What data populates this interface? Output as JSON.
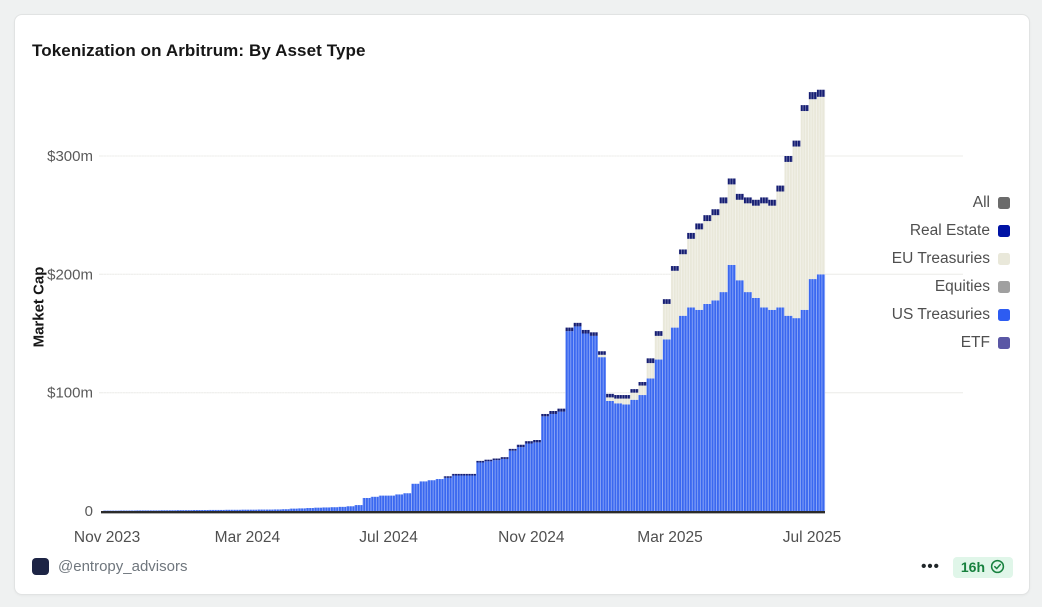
{
  "card": {
    "title": "Tokenization on Arbitrum: By Asset Type"
  },
  "legend": {
    "position": "right",
    "items": [
      {
        "label": "All",
        "color": "#6b6b6b"
      },
      {
        "label": "Real Estate",
        "color": "#0013a5"
      },
      {
        "label": "EU Treasuries",
        "color": "#e9e8da"
      },
      {
        "label": "Equities",
        "color": "#a0a0a0"
      },
      {
        "label": "US Treasuries",
        "color": "#2d5cf2"
      },
      {
        "label": "ETF",
        "color": "#5a57a5"
      }
    ]
  },
  "footer": {
    "handle": "@entropy_advisors",
    "overflow_label": "•••",
    "badge": {
      "age": "16h",
      "icon": "check-circle",
      "text_color": "#17813e",
      "bg_color": "#e0f6e9"
    }
  },
  "chart_data": {
    "type": "bar",
    "stacked": true,
    "title": "Tokenization on Arbitrum: By Asset Type",
    "xlabel": "",
    "ylabel": "Market Cap",
    "x_unit": "week (Nov 2023 → Jul 2025)",
    "ylim": [
      0,
      360
    ],
    "grid": true,
    "legend_position": "right",
    "y_ticks": [
      {
        "label": "$300m",
        "value": 300
      },
      {
        "label": "$200m",
        "value": 200
      },
      {
        "label": "$100m",
        "value": 100
      },
      {
        "label": "0",
        "value": 0
      }
    ],
    "x_ticks": [
      {
        "label": "Nov 2023",
        "week": 0
      },
      {
        "label": "Mar 2024",
        "week": 17.3
      },
      {
        "label": "Jul 2024",
        "week": 34.7
      },
      {
        "label": "Nov 2024",
        "week": 52.3
      },
      {
        "label": "Mar 2025",
        "week": 69.4
      },
      {
        "label": "Jul 2025",
        "week": 86.9
      }
    ],
    "series": [
      {
        "name": "US Treasuries",
        "color": "#3a68f0",
        "values": [
          0.3,
          0.3,
          0.4,
          0.4,
          0.5,
          0.5,
          0.5,
          0.6,
          0.6,
          0.7,
          0.7,
          0.8,
          0.8,
          0.9,
          0.9,
          1,
          1,
          1.1,
          1.1,
          1.2,
          1.2,
          1.3,
          1.5,
          2,
          2.2,
          2.5,
          2.8,
          3,
          3.2,
          3.5,
          4,
          5,
          11,
          12,
          13,
          13,
          14,
          15,
          23,
          25,
          26,
          27,
          28,
          30,
          30,
          30,
          41,
          42,
          43,
          44,
          51,
          54,
          57,
          58,
          80,
          82,
          84,
          152,
          156,
          150,
          148,
          130,
          93,
          91,
          90,
          94,
          98,
          112,
          128,
          145,
          155,
          165,
          172,
          170,
          175,
          178,
          185,
          208,
          195,
          185,
          180,
          172,
          170,
          172,
          165,
          163,
          170,
          196,
          200
        ]
      },
      {
        "name": "EU Treasuries",
        "color": "#e9e8da",
        "values": [
          0,
          0,
          0,
          0,
          0,
          0,
          0,
          0,
          0,
          0,
          0,
          0,
          0,
          0,
          0,
          0,
          0,
          0,
          0,
          0,
          0,
          0,
          0,
          0,
          0,
          0,
          0,
          0,
          0,
          0,
          0,
          0,
          0,
          0,
          0,
          0,
          0,
          0,
          0,
          0,
          0,
          0,
          0,
          0,
          0,
          0,
          0,
          0,
          0,
          0,
          0,
          0,
          0,
          0,
          0,
          0,
          0,
          0,
          0,
          0,
          0,
          2,
          3,
          4,
          5,
          6,
          8,
          13,
          20,
          30,
          48,
          52,
          58,
          68,
          70,
          72,
          75,
          68,
          68,
          75,
          78,
          88,
          88,
          98,
          130,
          145,
          168,
          152,
          150
        ]
      },
      {
        "name": "Real Estate",
        "color": "#151d72",
        "values": [
          0,
          0,
          0,
          0,
          0,
          0,
          0,
          0,
          0,
          0,
          0,
          0,
          0,
          0,
          0,
          0,
          0,
          0,
          0,
          0,
          0,
          0,
          0,
          0,
          0,
          0,
          0,
          0,
          0,
          0,
          0,
          0,
          0,
          0,
          0,
          0,
          0,
          0,
          0,
          0,
          0,
          0,
          0.5,
          0.5,
          1,
          1,
          1,
          1,
          1,
          1.5,
          1.5,
          2,
          2,
          2,
          2,
          2.5,
          2.5,
          3,
          3,
          3,
          3,
          3,
          3,
          3,
          3,
          3,
          3,
          4,
          4,
          4,
          4,
          4,
          5,
          5,
          5,
          5,
          5,
          5,
          5,
          5,
          5,
          5,
          5,
          5,
          5,
          5,
          5,
          6,
          6,
          6
        ]
      },
      {
        "name": "Equities",
        "color": "#a0a0a0",
        "visible": false,
        "values": []
      },
      {
        "name": "ETF",
        "color": "#5a57a5",
        "visible": false,
        "values": []
      }
    ]
  }
}
